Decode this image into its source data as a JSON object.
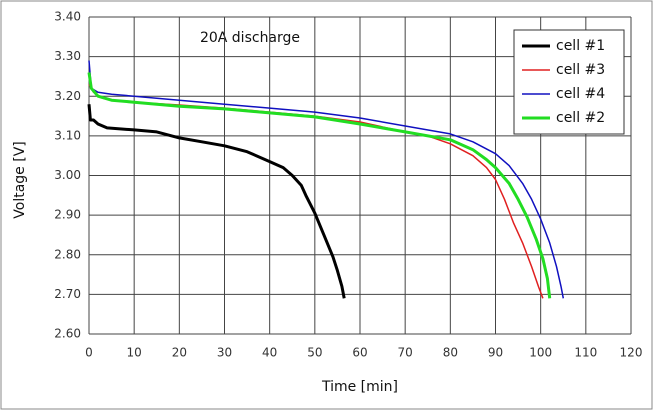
{
  "chart_data": {
    "type": "line",
    "annotation": "20A discharge",
    "xlabel": "Time [min]",
    "ylabel": "Voltage [V]",
    "xlim": [
      0,
      120
    ],
    "xticks": [
      0,
      10,
      20,
      30,
      40,
      50,
      60,
      70,
      80,
      90,
      100,
      110,
      120
    ],
    "ylim": [
      2.6,
      3.4
    ],
    "yticks": [
      {
        "value": 2.6,
        "label": "2.60"
      },
      {
        "value": 2.7,
        "label": "2.70"
      },
      {
        "value": 2.8,
        "label": "2.80"
      },
      {
        "value": 2.9,
        "label": "2.90"
      },
      {
        "value": 3.0,
        "label": "3.00"
      },
      {
        "value": 3.1,
        "label": "3.10"
      },
      {
        "value": 3.2,
        "label": "3.20"
      },
      {
        "value": 3.3,
        "label": "3.30"
      },
      {
        "value": 3.4,
        "label": "3.40"
      }
    ],
    "grid": true,
    "legend": "upper right",
    "series": [
      {
        "name": "cell #1",
        "color": "#000000",
        "x": [
          0,
          0.3,
          1,
          2,
          4,
          10,
          15,
          20,
          25,
          30,
          35,
          40,
          43,
          45,
          47,
          48,
          50,
          52,
          54,
          55,
          56,
          56.5
        ],
        "values": [
          3.18,
          3.14,
          3.14,
          3.13,
          3.12,
          3.115,
          3.11,
          3.095,
          3.085,
          3.075,
          3.06,
          3.035,
          3.02,
          3.0,
          2.975,
          2.95,
          2.905,
          2.85,
          2.795,
          2.76,
          2.72,
          2.69
        ]
      },
      {
        "name": "cell #3",
        "color": "#e02020",
        "x": [
          0,
          1,
          3,
          5,
          10,
          20,
          30,
          40,
          50,
          60,
          70,
          75,
          80,
          85,
          88,
          90,
          92,
          94,
          96,
          98,
          99.5,
          100.5
        ],
        "values": [
          3.23,
          3.21,
          3.195,
          3.19,
          3.185,
          3.178,
          3.17,
          3.16,
          3.15,
          3.135,
          3.11,
          3.1,
          3.08,
          3.05,
          3.02,
          2.99,
          2.94,
          2.88,
          2.83,
          2.77,
          2.72,
          2.69
        ]
      },
      {
        "name": "cell #4",
        "color": "#1010c0",
        "x": [
          0,
          0.5,
          2,
          5,
          10,
          20,
          30,
          40,
          50,
          60,
          70,
          80,
          85,
          90,
          93,
          96,
          98,
          100,
          102,
          103.5,
          104.5,
          105
        ],
        "values": [
          3.29,
          3.22,
          3.21,
          3.205,
          3.2,
          3.19,
          3.18,
          3.17,
          3.16,
          3.145,
          3.125,
          3.105,
          3.085,
          3.055,
          3.025,
          2.98,
          2.94,
          2.89,
          2.83,
          2.77,
          2.72,
          2.69
        ]
      },
      {
        "name": "cell #2",
        "color": "#22dd22",
        "x": [
          0,
          0.5,
          2,
          5,
          10,
          20,
          30,
          40,
          50,
          60,
          70,
          80,
          85,
          88,
          90,
          93,
          95,
          97,
          99,
          100.5,
          101.5,
          102
        ],
        "values": [
          3.26,
          3.22,
          3.2,
          3.19,
          3.185,
          3.175,
          3.168,
          3.158,
          3.148,
          3.13,
          3.11,
          3.09,
          3.065,
          3.04,
          3.02,
          2.98,
          2.94,
          2.895,
          2.84,
          2.79,
          2.74,
          2.69
        ]
      }
    ]
  }
}
